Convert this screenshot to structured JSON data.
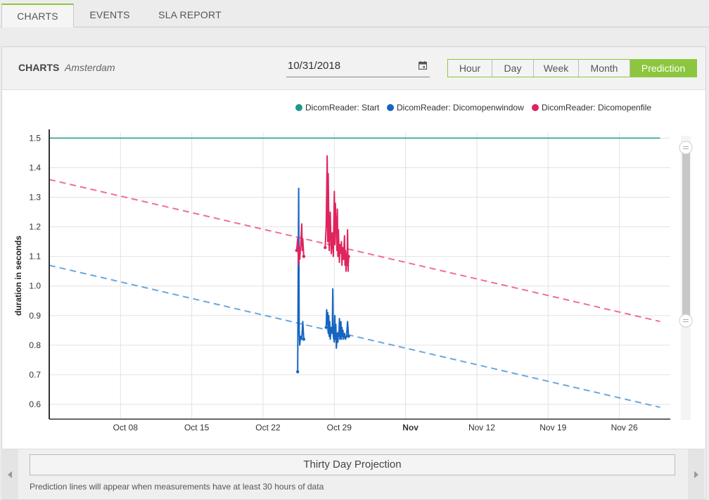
{
  "tabs": [
    {
      "label": "CHARTS",
      "active": true
    },
    {
      "label": "EVENTS",
      "active": false
    },
    {
      "label": "SLA REPORT",
      "active": false
    }
  ],
  "header": {
    "title": "CHARTS",
    "location": "Amsterdam",
    "date": "10/31/2018",
    "calendar_icon": "calendar-icon",
    "periods": [
      "Hour",
      "Day",
      "Week",
      "Month",
      "Prediction"
    ],
    "active_period": "Prediction"
  },
  "chart_data": {
    "type": "line",
    "ylabel": "duration in seconds",
    "ylim": [
      0.55,
      1.52
    ],
    "yticks": [
      "0.6",
      "0.7",
      "0.8",
      "0.9",
      "1.0",
      "1.1",
      "1.2",
      "1.3",
      "1.4",
      "1.5"
    ],
    "xlim": [
      "2018-10-01",
      "2018-12-01"
    ],
    "xticks": [
      "Oct 08",
      "Oct 15",
      "Oct 22",
      "Oct 29",
      "Nov",
      "Nov 12",
      "Nov 19",
      "Nov 26"
    ],
    "grid": true,
    "legend_position": "top-right",
    "colors": {
      "start": "#1a9a8a",
      "openwindow": "#1565c0",
      "openfile": "#e0245e",
      "pred_window": "#6aa7e0",
      "pred_file": "#ee6f95",
      "zoom_bar": "#c7c7c7"
    },
    "series": [
      {
        "name": "DicomReader: Start",
        "color": "#1a9a8a",
        "values": [
          [
            0.0,
            1.5
          ],
          [
            60.0,
            1.5
          ]
        ]
      },
      {
        "name": "DicomReader: Dicomopenwindow",
        "color": "#1565c0",
        "values": [
          [
            24.4,
            0.71
          ],
          [
            24.5,
            1.33
          ],
          [
            24.55,
            0.85
          ],
          [
            24.6,
            0.8
          ],
          [
            24.7,
            0.83
          ],
          [
            24.8,
            0.82
          ],
          [
            24.9,
            0.88
          ],
          [
            25.0,
            0.82
          ],
          [
            27.2,
            0.86
          ],
          [
            27.25,
            0.92
          ],
          [
            27.3,
            0.87
          ],
          [
            27.35,
            0.91
          ],
          [
            27.4,
            0.84
          ],
          [
            27.45,
            0.9
          ],
          [
            27.5,
            0.83
          ],
          [
            27.55,
            0.88
          ],
          [
            27.6,
            0.82
          ],
          [
            27.7,
            0.86
          ],
          [
            27.8,
            0.84
          ],
          [
            27.85,
            0.99
          ],
          [
            27.9,
            0.83
          ],
          [
            28.0,
            0.81
          ],
          [
            28.05,
            0.9
          ],
          [
            28.1,
            0.82
          ],
          [
            28.15,
            0.87
          ],
          [
            28.2,
            0.79
          ],
          [
            28.3,
            0.84
          ],
          [
            28.35,
            0.81
          ],
          [
            28.4,
            0.84
          ],
          [
            28.45,
            0.83
          ],
          [
            28.5,
            0.89
          ],
          [
            28.55,
            0.82
          ],
          [
            28.6,
            0.84
          ],
          [
            28.65,
            0.88
          ],
          [
            28.7,
            0.82
          ],
          [
            28.75,
            0.86
          ],
          [
            28.8,
            0.83
          ],
          [
            28.85,
            0.85
          ],
          [
            28.9,
            0.82
          ],
          [
            29.0,
            0.84
          ],
          [
            29.1,
            0.82
          ],
          [
            29.2,
            0.83
          ],
          [
            29.3,
            0.88
          ],
          [
            29.4,
            0.83
          ]
        ]
      },
      {
        "name": "DicomReader: Dicomopenfile",
        "color": "#e0245e",
        "values": [
          [
            24.3,
            1.12
          ],
          [
            24.4,
            1.16
          ],
          [
            24.5,
            1.07
          ],
          [
            24.55,
            1.13
          ],
          [
            24.6,
            1.09
          ],
          [
            24.7,
            1.14
          ],
          [
            24.8,
            1.21
          ],
          [
            24.85,
            1.12
          ],
          [
            24.9,
            1.16
          ],
          [
            25.0,
            1.1
          ],
          [
            27.1,
            1.13
          ],
          [
            27.2,
            1.2
          ],
          [
            27.3,
            1.44
          ],
          [
            27.35,
            1.15
          ],
          [
            27.4,
            1.38
          ],
          [
            27.5,
            1.12
          ],
          [
            27.6,
            1.25
          ],
          [
            27.7,
            1.11
          ],
          [
            27.8,
            1.18
          ],
          [
            27.9,
            1.1
          ],
          [
            28.0,
            1.32
          ],
          [
            28.05,
            1.14
          ],
          [
            28.1,
            1.28
          ],
          [
            28.2,
            1.18
          ],
          [
            28.25,
            1.12
          ],
          [
            28.3,
            1.26
          ],
          [
            28.35,
            1.1
          ],
          [
            28.4,
            1.19
          ],
          [
            28.5,
            1.08
          ],
          [
            28.55,
            1.14
          ],
          [
            28.6,
            1.11
          ],
          [
            28.7,
            1.15
          ],
          [
            28.75,
            1.07
          ],
          [
            28.8,
            1.13
          ],
          [
            28.9,
            1.09
          ],
          [
            29.0,
            1.17
          ],
          [
            29.05,
            1.07
          ],
          [
            29.1,
            1.12
          ],
          [
            29.15,
            1.05
          ],
          [
            29.2,
            1.11
          ],
          [
            29.25,
            1.07
          ],
          [
            29.3,
            1.19
          ],
          [
            29.35,
            1.05
          ],
          [
            29.4,
            1.1
          ]
        ]
      }
    ],
    "predictions": [
      {
        "series": "DicomReader: Dicomopenwindow",
        "color": "#6aa7e0",
        "values": [
          [
            0.0,
            1.07
          ],
          [
            60.0,
            0.59
          ]
        ]
      },
      {
        "series": "DicomReader: Dicomopenfile",
        "color": "#ee6f95",
        "values": [
          [
            0.0,
            1.36
          ],
          [
            60.0,
            0.88
          ]
        ]
      }
    ]
  },
  "footer": {
    "projection_label": "Thirty Day Projection",
    "note": "Prediction lines will appear when measurements have at least 30 hours of data",
    "left_arrow": "chevron-left-icon",
    "right_arrow": "chevron-right-icon"
  }
}
